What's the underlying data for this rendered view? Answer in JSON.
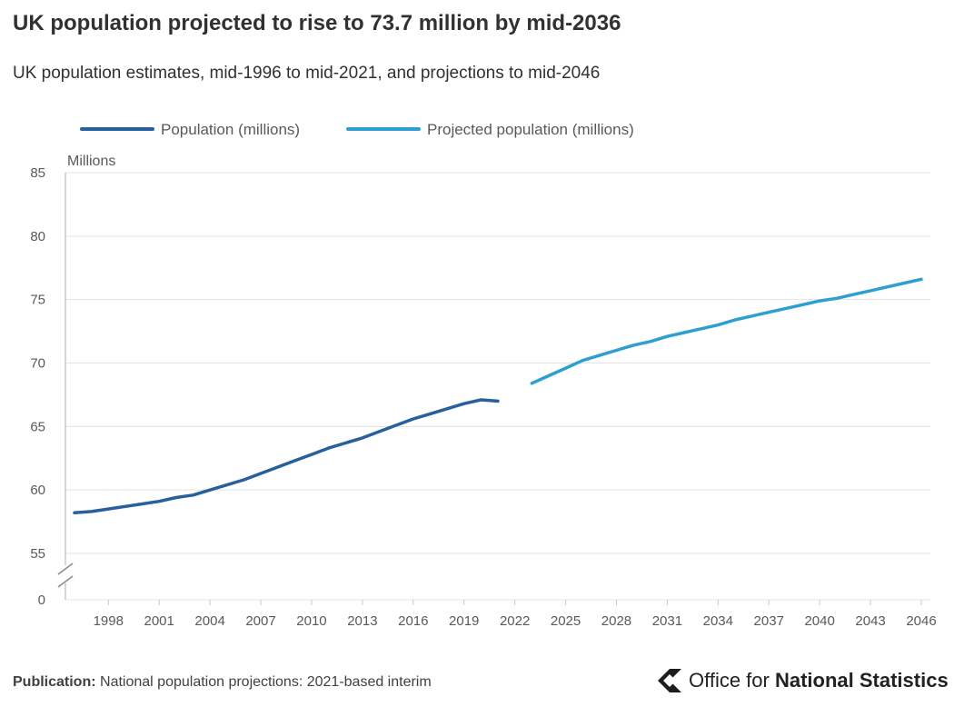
{
  "header": {
    "title": "UK population projected to rise to 73.7 million by mid-2036",
    "subtitle": "UK population estimates, mid-1996 to mid-2021, and projections to mid-2046"
  },
  "footer": {
    "publication_label": "Publication:",
    "publication_text": "National population projections: 2021-based interim",
    "brand_prefix": "Office for ",
    "brand_bold": "National Statistics"
  },
  "colors": {
    "population": "#27609c",
    "projected": "#2e9fd0",
    "grid": "#e3e3e3",
    "axis_text": "#595959"
  },
  "chart_data": {
    "type": "line",
    "title": "UK population projected to rise to 73.7 million by mid-2036",
    "subtitle": "UK population estimates, mid-1996 to mid-2021, and projections to mid-2046",
    "ylabel": "Millions",
    "xlabel": "",
    "y_ticks": [
      0,
      55,
      60,
      65,
      70,
      75,
      80,
      85
    ],
    "y_break": true,
    "ylim": [
      55,
      85
    ],
    "xlim": [
      1996,
      2046
    ],
    "x_ticks": [
      1998,
      2001,
      2004,
      2007,
      2010,
      2013,
      2016,
      2019,
      2022,
      2025,
      2028,
      2031,
      2034,
      2037,
      2040,
      2043,
      2046
    ],
    "legend": [
      "Population (millions)",
      "Projected population (millions)"
    ],
    "series": [
      {
        "name": "Population (millions)",
        "x": [
          1996,
          1997,
          1998,
          1999,
          2000,
          2001,
          2002,
          2003,
          2004,
          2005,
          2006,
          2007,
          2008,
          2009,
          2010,
          2011,
          2012,
          2013,
          2014,
          2015,
          2016,
          2017,
          2018,
          2019,
          2020,
          2021
        ],
        "values": [
          58.2,
          58.3,
          58.5,
          58.7,
          58.9,
          59.1,
          59.4,
          59.6,
          60.0,
          60.4,
          60.8,
          61.3,
          61.8,
          62.3,
          62.8,
          63.3,
          63.7,
          64.1,
          64.6,
          65.1,
          65.6,
          66.0,
          66.4,
          66.8,
          67.1,
          67.0
        ]
      },
      {
        "name": "Projected population (millions)",
        "x": [
          2023,
          2024,
          2025,
          2026,
          2027,
          2028,
          2029,
          2030,
          2031,
          2032,
          2033,
          2034,
          2035,
          2036,
          2037,
          2038,
          2039,
          2040,
          2041,
          2042,
          2043,
          2044,
          2045,
          2046
        ],
        "values": [
          68.4,
          69.0,
          69.6,
          70.2,
          70.6,
          71.0,
          71.4,
          71.7,
          72.1,
          72.4,
          72.7,
          73.0,
          73.4,
          73.7,
          74.0,
          74.3,
          74.6,
          74.9,
          75.1,
          75.4,
          75.7,
          76.0,
          76.3,
          76.6
        ]
      }
    ]
  }
}
